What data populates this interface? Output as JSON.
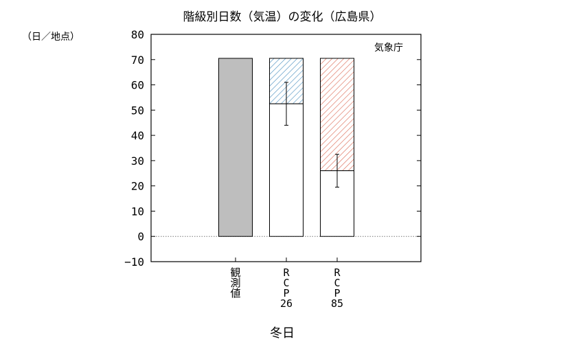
{
  "chart_data": {
    "type": "bar",
    "title": "階級別日数（気温）の変化（広島県）",
    "ylabel": "（日／地点）",
    "xlabel": "冬日",
    "source": "気象庁",
    "ylim": [
      -10,
      80
    ],
    "yticks": [
      -10,
      0,
      10,
      20,
      30,
      40,
      50,
      60,
      70,
      80
    ],
    "yticklabels": [
      "−10",
      "0",
      "10",
      "20",
      "30",
      "40",
      "50",
      "60",
      "70",
      "80"
    ],
    "categories": [
      "観測値",
      "RCP26",
      "RCP85"
    ],
    "category_labels": [
      [
        "観",
        "測",
        "値"
      ],
      [
        "R",
        "C",
        "P",
        "26"
      ],
      [
        "R",
        "C",
        "P",
        "85"
      ]
    ],
    "observed": 70.5,
    "baseline": 70.5,
    "projected": [
      null,
      52.5,
      26
    ],
    "error_low": [
      null,
      44,
      19.5
    ],
    "error_high": [
      null,
      61,
      32.5
    ],
    "colors": {
      "observed_fill": "#bebebe",
      "rcp26_hatch": "#4a8fbf",
      "rcp85_hatch": "#d9604a",
      "zero_line": "#777777"
    }
  }
}
